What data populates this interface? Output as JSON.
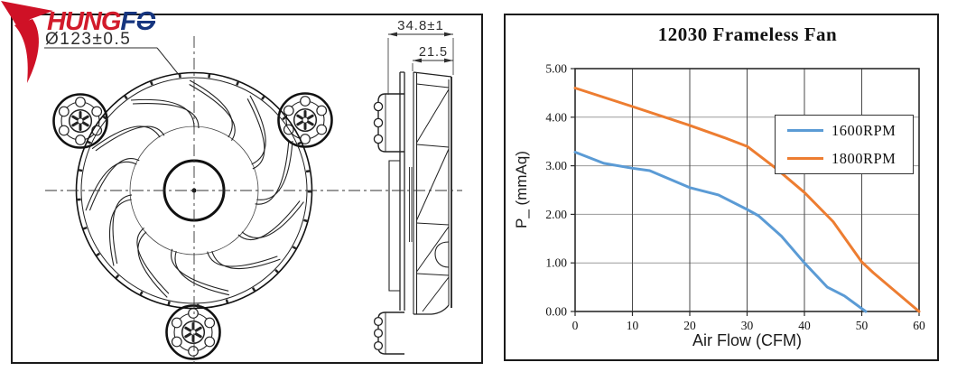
{
  "logo": {
    "brand_red": "HUNG",
    "brand_blue_f": "F",
    "brand_blue_o": "O",
    "red": "#d21b2b",
    "blue": "#16357f"
  },
  "drawing": {
    "dim_diameter": "Ø123±0.5",
    "dim_depth": "34.8±1",
    "dim_impeller_width": "21.5"
  },
  "chart": {
    "title": "12030 Frameless Fan",
    "xlabel": "Air Flow (CFM)",
    "ylabel": "P_ (mmAq)",
    "x_ticks": [
      "0",
      "10",
      "20",
      "30",
      "40",
      "50",
      "60"
    ],
    "y_ticks": [
      "0.00",
      "1.00",
      "2.00",
      "3.00",
      "4.00",
      "5.00"
    ]
  },
  "chart_data": {
    "type": "line",
    "title": "12030 Frameless Fan",
    "xlabel": "Air Flow (CFM)",
    "ylabel": "P_ (mmAq)",
    "xlim": [
      0,
      60
    ],
    "ylim": [
      0,
      5
    ],
    "x_tick_step": 10,
    "y_tick_step": 1,
    "grid": true,
    "legend_position": "upper-right-inside",
    "series": [
      {
        "name": "1600RPM",
        "color": "#5B9BD5",
        "points": [
          [
            0,
            3.28
          ],
          [
            5,
            3.05
          ],
          [
            10,
            2.95
          ],
          [
            13,
            2.9
          ],
          [
            20,
            2.55
          ],
          [
            25,
            2.4
          ],
          [
            30,
            2.1
          ],
          [
            32,
            1.97
          ],
          [
            36,
            1.55
          ],
          [
            40,
            1.0
          ],
          [
            44,
            0.5
          ],
          [
            47,
            0.32
          ],
          [
            50.7,
            0.0
          ]
        ]
      },
      {
        "name": "1800RPM",
        "color": "#ED7D31",
        "points": [
          [
            0,
            4.6
          ],
          [
            10,
            4.22
          ],
          [
            20,
            3.83
          ],
          [
            26,
            3.58
          ],
          [
            30,
            3.4
          ],
          [
            35,
            2.95
          ],
          [
            40,
            2.45
          ],
          [
            45,
            1.85
          ],
          [
            50,
            1.02
          ],
          [
            52,
            0.8
          ],
          [
            60,
            0.0
          ]
        ]
      }
    ]
  }
}
